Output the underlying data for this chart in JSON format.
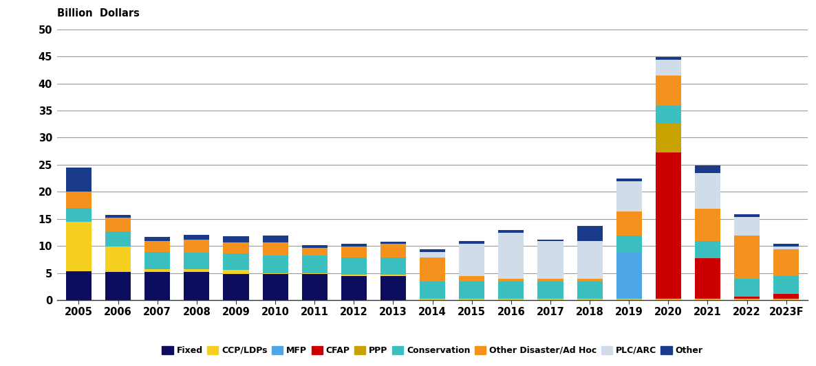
{
  "years": [
    "2005",
    "2006",
    "2007",
    "2008",
    "2009",
    "2010",
    "2011",
    "2012",
    "2013",
    "2014",
    "2015",
    "2016",
    "2017",
    "2018",
    "2019",
    "2020",
    "2021",
    "2022",
    "2023F"
  ],
  "segments": {
    "Fixed": [
      5.3,
      5.2,
      5.2,
      5.2,
      4.8,
      4.8,
      4.8,
      4.5,
      4.5,
      0.0,
      0.0,
      0.0,
      0.0,
      0.0,
      0.0,
      0.0,
      0.0,
      0.0,
      0.0
    ],
    "CCP/LDPs": [
      9.2,
      4.7,
      0.5,
      0.5,
      0.8,
      0.2,
      0.2,
      0.2,
      0.2,
      0.2,
      0.2,
      0.2,
      0.2,
      0.2,
      0.2,
      0.2,
      0.2,
      0.2,
      0.2
    ],
    "MFP": [
      0.0,
      0.0,
      0.0,
      0.0,
      0.0,
      0.0,
      0.0,
      0.0,
      0.0,
      0.0,
      0.0,
      0.0,
      0.0,
      0.0,
      8.5,
      0.0,
      0.0,
      0.0,
      0.0
    ],
    "CFAP": [
      0.0,
      0.0,
      0.0,
      0.0,
      0.0,
      0.0,
      0.0,
      0.0,
      0.0,
      0.0,
      0.0,
      0.0,
      0.0,
      0.0,
      0.0,
      27.0,
      7.5,
      0.5,
      1.0
    ],
    "PPP": [
      0.0,
      0.0,
      0.0,
      0.0,
      0.0,
      0.0,
      0.0,
      0.0,
      0.0,
      0.0,
      0.0,
      0.0,
      0.0,
      0.0,
      0.0,
      5.5,
      0.0,
      0.0,
      0.0
    ],
    "Conservation": [
      2.5,
      2.8,
      3.2,
      3.0,
      3.0,
      3.2,
      3.2,
      3.2,
      3.2,
      3.2,
      3.2,
      3.2,
      3.2,
      3.2,
      3.2,
      3.2,
      3.2,
      3.2,
      3.2
    ],
    "Other Disaster/Ad Hoc": [
      3.0,
      2.5,
      2.0,
      2.5,
      2.0,
      2.5,
      1.5,
      2.0,
      2.5,
      4.5,
      1.0,
      0.5,
      0.5,
      0.5,
      4.5,
      5.5,
      6.0,
      8.0,
      5.0
    ],
    "PLC/ARC": [
      0.0,
      0.0,
      0.0,
      0.0,
      0.0,
      0.0,
      0.0,
      0.0,
      0.0,
      1.0,
      6.0,
      8.5,
      7.0,
      7.0,
      5.5,
      3.0,
      6.5,
      3.5,
      0.5
    ],
    "Other": [
      4.5,
      0.5,
      0.8,
      0.8,
      1.2,
      1.2,
      0.5,
      0.5,
      0.4,
      0.5,
      0.5,
      0.5,
      0.3,
      2.8,
      0.5,
      0.5,
      1.5,
      0.5,
      0.5
    ]
  },
  "colors": {
    "Fixed": "#0d0d5e",
    "CCP/LDPs": "#f5d020",
    "MFP": "#4da6e8",
    "CFAP": "#cc0000",
    "PPP": "#c8a200",
    "Conservation": "#3bbfbf",
    "Other Disaster/Ad Hoc": "#f5921e",
    "PLC/ARC": "#d0dce8",
    "Other": "#1a3a8a"
  },
  "ylabel": "Billion  Dollars",
  "ylim": [
    0,
    50
  ],
  "yticks": [
    0,
    5,
    10,
    15,
    20,
    25,
    30,
    35,
    40,
    45,
    50
  ],
  "background_color": "#ffffff",
  "grid_color": "#999999"
}
